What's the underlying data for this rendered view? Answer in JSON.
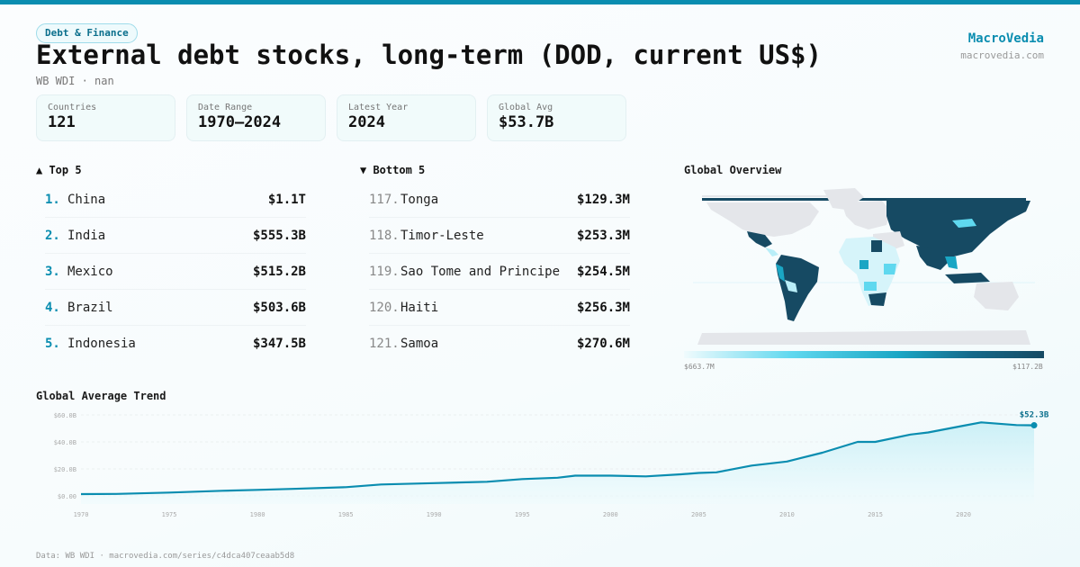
{
  "header": {
    "category_badge": "Debt & Finance",
    "title": "External debt stocks, long-term (DOD, current US$)",
    "subtitle": "WB WDI · nan",
    "brand_name": "MacroVedia",
    "brand_url": "macrovedia.com"
  },
  "stats": [
    {
      "label": "Countries",
      "value": "121"
    },
    {
      "label": "Date Range",
      "value": "1970–2024"
    },
    {
      "label": "Latest Year",
      "value": "2024"
    },
    {
      "label": "Global Avg",
      "value": "$53.7B"
    }
  ],
  "top5": {
    "heading": "▲ Top 5",
    "items": [
      {
        "rank": "1.",
        "name": "China",
        "value": "$1.1T"
      },
      {
        "rank": "2.",
        "name": "India",
        "value": "$555.3B"
      },
      {
        "rank": "3.",
        "name": "Mexico",
        "value": "$515.2B"
      },
      {
        "rank": "4.",
        "name": "Brazil",
        "value": "$503.6B"
      },
      {
        "rank": "5.",
        "name": "Indonesia",
        "value": "$347.5B"
      }
    ]
  },
  "bottom5": {
    "heading": "▼ Bottom 5",
    "items": [
      {
        "rank": "117.",
        "name": "Tonga",
        "value": "$129.3M"
      },
      {
        "rank": "118.",
        "name": "Timor-Leste",
        "value": "$253.3M"
      },
      {
        "rank": "119.",
        "name": "Sao Tome and Principe",
        "value": "$254.5M"
      },
      {
        "rank": "120.",
        "name": "Haiti",
        "value": "$256.3M"
      },
      {
        "rank": "121.",
        "name": "Samoa",
        "value": "$270.6M"
      }
    ]
  },
  "map": {
    "title": "Global Overview",
    "legend_min": "$663.7M",
    "legend_max": "$117.2B",
    "colors": {
      "no_data": "#e4e6ea",
      "low": "#d6f4fa",
      "mid_low": "#5fd8ef",
      "mid": "#1aa6c4",
      "high": "#164a63"
    }
  },
  "trend": {
    "title": "Global Average Trend",
    "end_label": "$52.3B"
  },
  "footer": "Data: WB WDI · macrovedia.com/series/c4dca407ceaab5d8",
  "colors": {
    "accent": "#0a8db0",
    "line": "#0a8db0",
    "area": "#c9eff6"
  },
  "chart_data": {
    "type": "area",
    "title": "Global Average Trend",
    "xlabel": "",
    "ylabel": "",
    "x": [
      1970,
      1972,
      1975,
      1978,
      1980,
      1982,
      1985,
      1987,
      1990,
      1993,
      1995,
      1997,
      1998,
      2000,
      2002,
      2004,
      2005,
      2006,
      2008,
      2010,
      2012,
      2014,
      2015,
      2017,
      2018,
      2020,
      2021,
      2023,
      2024
    ],
    "values": [
      1.3,
      1.5,
      2.5,
      3.8,
      4.5,
      5.2,
      6.5,
      8.5,
      9.5,
      10.5,
      12.5,
      13.5,
      15,
      15,
      14.5,
      16,
      17,
      17.5,
      22.5,
      25.5,
      32,
      40,
      40,
      45.5,
      47,
      52,
      54.5,
      52.5,
      52.3
    ],
    "x_ticks": [
      "1970",
      "1975",
      "1980",
      "1985",
      "1990",
      "1995",
      "2000",
      "2005",
      "2010",
      "2015",
      "2020"
    ],
    "y_ticks": [
      "$0.00",
      "$20.0B",
      "$40.0B",
      "$60.0B"
    ],
    "ylim": [
      0,
      60
    ],
    "grid": true,
    "legend": "none",
    "annotations": [
      {
        "x": 2024,
        "y": 52.3,
        "text": "$52.3B"
      }
    ]
  }
}
